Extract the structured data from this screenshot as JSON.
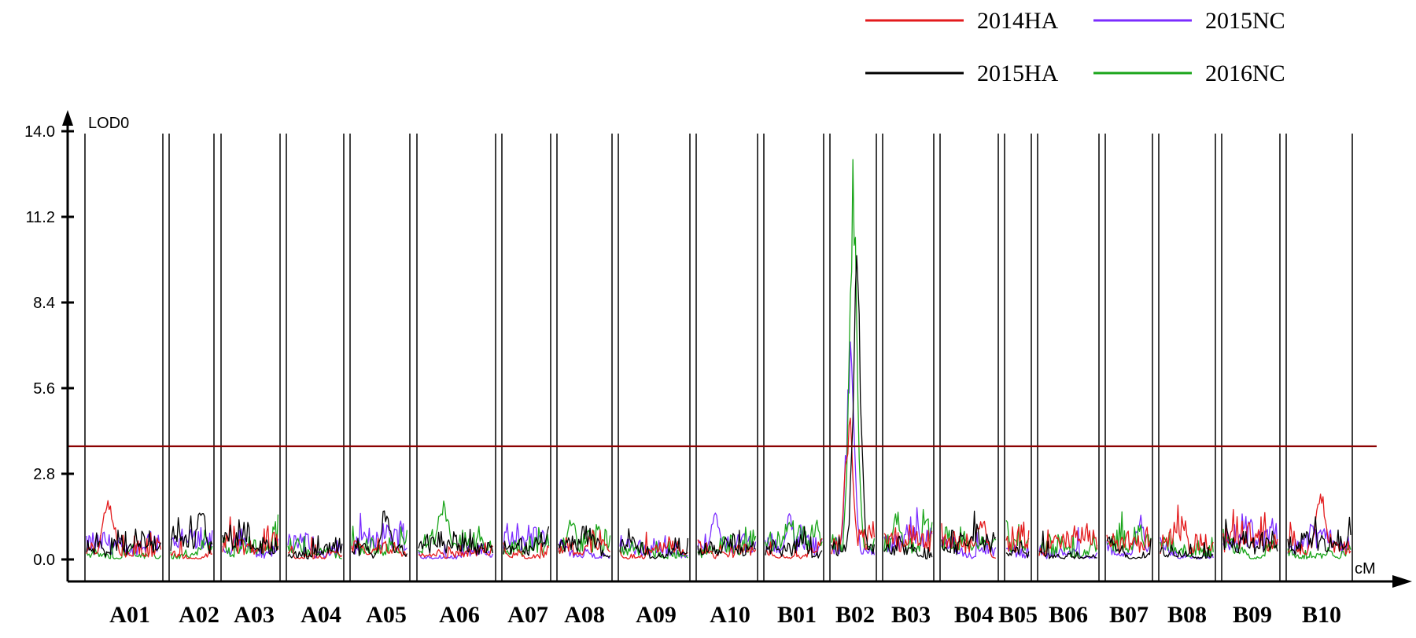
{
  "chart_data": {
    "type": "line",
    "ylabel": "LOD0",
    "xlabel": "cM",
    "ylim": [
      0,
      14.0
    ],
    "yticks": [
      "0.0",
      "2.8",
      "5.6",
      "8.4",
      "11.2",
      "14.0"
    ],
    "threshold": 3.7,
    "threshold_color": "#8b0000",
    "chromosomes": [
      "A01",
      "A02",
      "A03",
      "A04",
      "A05",
      "A06",
      "A07",
      "A08",
      "A09",
      "A10",
      "B01",
      "B02",
      "B03",
      "B04",
      "B05",
      "B06",
      "B07",
      "B08",
      "B09",
      "B10"
    ],
    "legend_position": "top-right",
    "series": [
      {
        "name": "2014HA",
        "color": "#e31a1c"
      },
      {
        "name": "2015NC",
        "color": "#7b2cff"
      },
      {
        "name": "2015HA",
        "color": "#000000"
      },
      {
        "name": "2016NC",
        "color": "#1aa51a"
      }
    ],
    "peaks": [
      {
        "chrom": "A01",
        "series": "2014HA",
        "lod": 2.2
      },
      {
        "chrom": "A02",
        "series": "2015HA",
        "lod": 2.0
      },
      {
        "chrom": "A05",
        "series": "2015HA",
        "lod": 1.9
      },
      {
        "chrom": "A06",
        "series": "2016NC",
        "lod": 2.1
      },
      {
        "chrom": "A08",
        "series": "2016NC",
        "lod": 1.5
      },
      {
        "chrom": "A10",
        "series": "2015NC",
        "lod": 1.6
      },
      {
        "chrom": "B01",
        "series": "2015NC",
        "lod": 1.5
      },
      {
        "chrom": "B02",
        "series": "2016NC",
        "lod": 13.3
      },
      {
        "chrom": "B02",
        "series": "2015HA",
        "lod": 10.0
      },
      {
        "chrom": "B02",
        "series": "2015NC",
        "lod": 7.4
      },
      {
        "chrom": "B02",
        "series": "2014HA",
        "lod": 5.2
      },
      {
        "chrom": "B03",
        "series": "2016NC",
        "lod": 1.6
      },
      {
        "chrom": "B04",
        "series": "2014HA",
        "lod": 1.6
      },
      {
        "chrom": "B07",
        "series": "2015NC",
        "lod": 1.5
      },
      {
        "chrom": "B10",
        "series": "2014HA",
        "lod": 2.5
      }
    ]
  }
}
